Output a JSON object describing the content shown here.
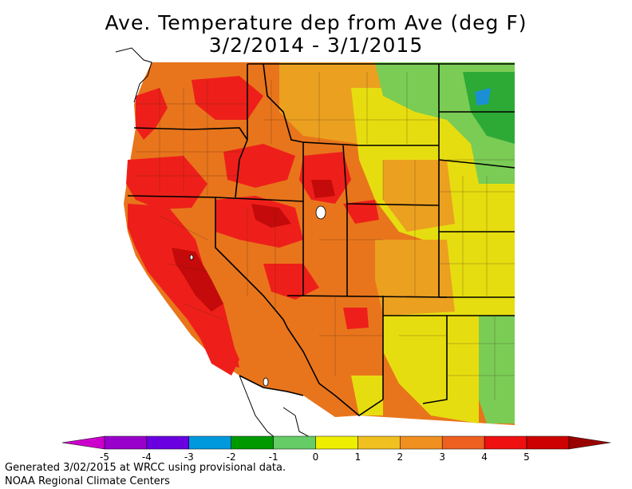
{
  "title_line1": "Ave. Temperature dep from Ave (deg F)",
  "title_line2": "3/2/2014 - 3/1/2015",
  "footer_line1": "Generated 3/02/2015 at WRCC using provisional data.",
  "footer_line2": "NOAA Regional Climate Centers",
  "legend": {
    "ticks": [
      "-5",
      "-4",
      "-3",
      "-2",
      "-1",
      "0",
      "1",
      "2",
      "3",
      "4",
      "5"
    ],
    "colors": [
      "#cc00cc",
      "#9900cc",
      "#6a00e0",
      "#0099dd",
      "#009900",
      "#66cc66",
      "#eeee00",
      "#f0c020",
      "#f09020",
      "#ee6020",
      "#ee1010",
      "#cc0000",
      "#990000"
    ]
  },
  "palette": {
    "above_1": "#e6dd10",
    "above_2": "#eba020",
    "above_3": "#e8751c",
    "above_4": "#ee1f1a",
    "above_5": "#c40a0a",
    "near_0": "#7acc55",
    "below_0": "#2daa35",
    "cold": "#1b8fd4"
  }
}
